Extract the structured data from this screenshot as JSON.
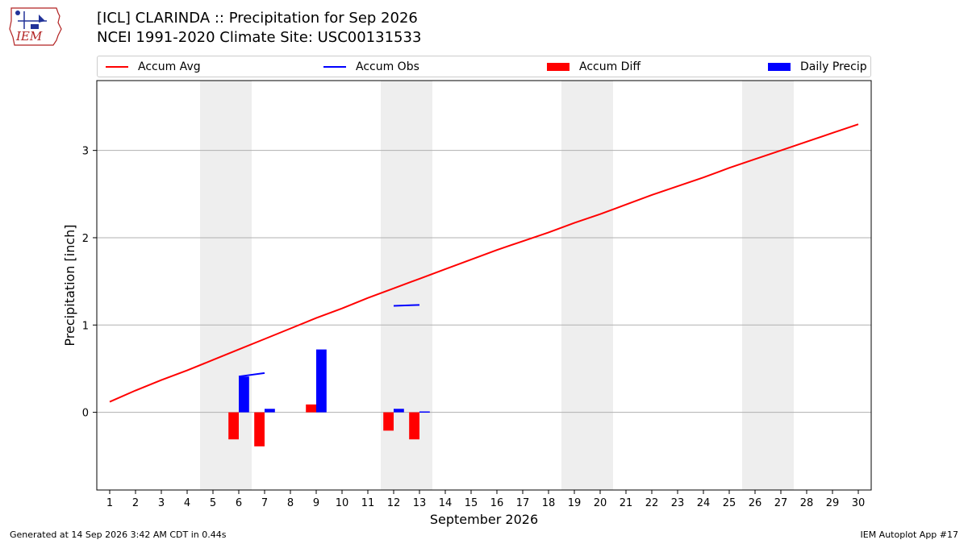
{
  "header": {
    "title_line1": "[ICL] CLARINDA :: Precipitation for Sep 2026",
    "title_line2": "NCEI 1991-2020 Climate Site: USC00131533",
    "logo_text": "IEM"
  },
  "legend": {
    "items": [
      {
        "label": "Accum Avg",
        "kind": "line",
        "color": "#ff0000"
      },
      {
        "label": "Accum Obs",
        "kind": "line",
        "color": "#0000ff"
      },
      {
        "label": "Accum Diff",
        "kind": "box",
        "color": "#ff0000"
      },
      {
        "label": "Daily Precip",
        "kind": "box",
        "color": "#0000ff"
      }
    ]
  },
  "footer": {
    "left": "Generated at 14 Sep 2026 3:42 AM CDT in 0.44s",
    "right": "IEM Autoplot App #17"
  },
  "chart_data": {
    "type": "bar",
    "title": "[ICL] CLARINDA :: Precipitation for Sep 2026",
    "subtitle": "NCEI 1991-2020 Climate Site: USC00131533",
    "xlabel": "September 2026",
    "ylabel": "Precipitation [inch]",
    "x": [
      1,
      2,
      3,
      4,
      5,
      6,
      7,
      8,
      9,
      10,
      11,
      12,
      13,
      14,
      15,
      16,
      17,
      18,
      19,
      20,
      21,
      22,
      23,
      24,
      25,
      26,
      27,
      28,
      29,
      30
    ],
    "xlim": [
      0.5,
      30.5
    ],
    "ylim": [
      -0.89,
      3.8
    ],
    "yticks": [
      0,
      1,
      2,
      3
    ],
    "grid": true,
    "weekend_shading": [
      [
        4.5,
        6.5
      ],
      [
        11.5,
        13.5
      ],
      [
        18.5,
        20.5
      ],
      [
        25.5,
        27.5
      ]
    ],
    "colors": {
      "avg": "#ff0000",
      "obs": "#0000ff",
      "diff": "#ff0000",
      "daily": "#0000ff",
      "shade": "#eeeeee",
      "grid": "#b0b0b0"
    },
    "series": [
      {
        "name": "Accum Avg",
        "kind": "line",
        "values": [
          0.12,
          0.25,
          0.37,
          0.48,
          0.6,
          0.72,
          0.84,
          0.96,
          1.08,
          1.19,
          1.31,
          1.42,
          1.53,
          1.64,
          1.75,
          1.86,
          1.96,
          2.06,
          2.17,
          2.27,
          2.38,
          2.49,
          2.59,
          2.69,
          2.8,
          2.9,
          3.0,
          3.1,
          3.2,
          3.3
        ]
      },
      {
        "name": "Accum Obs",
        "kind": "line-segments",
        "segments": [
          [
            [
              6,
              0.41
            ],
            [
              7,
              0.45
            ]
          ],
          [
            [
              12,
              1.22
            ],
            [
              13,
              1.23
            ]
          ]
        ]
      },
      {
        "name": "Accum Diff",
        "kind": "bar",
        "values": [
          null,
          null,
          null,
          null,
          null,
          -0.31,
          -0.39,
          null,
          0.09,
          null,
          null,
          -0.21,
          -0.31,
          null,
          null,
          null,
          null,
          null,
          null,
          null,
          null,
          null,
          null,
          null,
          null,
          null,
          null,
          null,
          null,
          null
        ]
      },
      {
        "name": "Daily Precip",
        "kind": "bar",
        "values": [
          null,
          null,
          null,
          null,
          null,
          0.41,
          0.04,
          null,
          0.72,
          null,
          null,
          0.04,
          0.01,
          null,
          null,
          null,
          null,
          null,
          null,
          null,
          null,
          null,
          null,
          null,
          null,
          null,
          null,
          null,
          null,
          null
        ]
      }
    ]
  }
}
